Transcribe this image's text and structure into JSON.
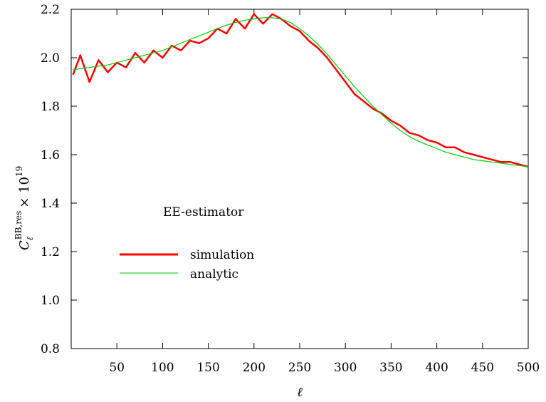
{
  "chart_data": {
    "type": "line",
    "ylabel": "C_ℓ^{BB,res} × 10^{19}",
    "ylabel_main": "C",
    "ylabel_sub": "ℓ",
    "ylabel_sup": "BB,res",
    "ylabel_times": "× 10",
    "ylabel_exp": "19",
    "xlabel": "ℓ",
    "xlim": [
      0,
      500
    ],
    "ylim": [
      0.8,
      2.2
    ],
    "xticks": [
      50,
      100,
      150,
      200,
      250,
      300,
      350,
      400,
      450,
      500
    ],
    "xtick_labels": [
      "50",
      "100",
      "150",
      "200",
      "250",
      "300",
      "350",
      "400",
      "450",
      "500"
    ],
    "yticks": [
      0.8,
      1.0,
      1.2,
      1.4,
      1.6,
      1.8,
      2.0,
      2.2
    ],
    "ytick_labels": [
      "0.8",
      "1.0",
      "1.2",
      "1.4",
      "1.6",
      "1.8",
      "2.0",
      "2.2"
    ],
    "annotation": "EE-estimator",
    "legend_position": "center-left",
    "series": [
      {
        "name": "simulation",
        "color": "#ff0000",
        "x": [
          2,
          10,
          20,
          30,
          40,
          50,
          60,
          70,
          80,
          90,
          100,
          110,
          120,
          130,
          140,
          150,
          160,
          170,
          180,
          190,
          200,
          210,
          220,
          230,
          240,
          250,
          260,
          270,
          280,
          290,
          300,
          310,
          320,
          330,
          340,
          350,
          360,
          370,
          380,
          390,
          400,
          410,
          420,
          430,
          440,
          450,
          460,
          470,
          480,
          490,
          500
        ],
        "y": [
          1.93,
          2.01,
          1.9,
          1.99,
          1.94,
          1.98,
          1.96,
          2.02,
          1.98,
          2.03,
          2.0,
          2.05,
          2.03,
          2.07,
          2.06,
          2.08,
          2.12,
          2.1,
          2.16,
          2.12,
          2.18,
          2.14,
          2.18,
          2.16,
          2.13,
          2.11,
          2.07,
          2.04,
          2.0,
          1.95,
          1.9,
          1.85,
          1.82,
          1.79,
          1.77,
          1.74,
          1.72,
          1.69,
          1.68,
          1.66,
          1.65,
          1.63,
          1.63,
          1.61,
          1.6,
          1.59,
          1.58,
          1.57,
          1.57,
          1.56,
          1.55
        ]
      },
      {
        "name": "analytic",
        "color": "#00cc00",
        "x": [
          2,
          10,
          20,
          30,
          40,
          50,
          60,
          70,
          80,
          90,
          100,
          110,
          120,
          130,
          140,
          150,
          160,
          170,
          180,
          190,
          200,
          210,
          220,
          230,
          240,
          250,
          260,
          270,
          280,
          290,
          300,
          310,
          320,
          330,
          340,
          350,
          360,
          370,
          380,
          390,
          400,
          410,
          420,
          430,
          440,
          450,
          460,
          470,
          480,
          490,
          500
        ],
        "y": [
          1.95,
          1.955,
          1.96,
          1.965,
          1.97,
          1.98,
          1.99,
          2.0,
          2.01,
          2.02,
          2.03,
          2.045,
          2.06,
          2.075,
          2.09,
          2.105,
          2.12,
          2.135,
          2.145,
          2.155,
          2.16,
          2.165,
          2.165,
          2.16,
          2.145,
          2.12,
          2.09,
          2.055,
          2.015,
          1.97,
          1.925,
          1.88,
          1.84,
          1.8,
          1.765,
          1.73,
          1.7,
          1.675,
          1.655,
          1.64,
          1.625,
          1.61,
          1.6,
          1.59,
          1.58,
          1.575,
          1.57,
          1.565,
          1.56,
          1.555,
          1.55
        ]
      }
    ]
  }
}
